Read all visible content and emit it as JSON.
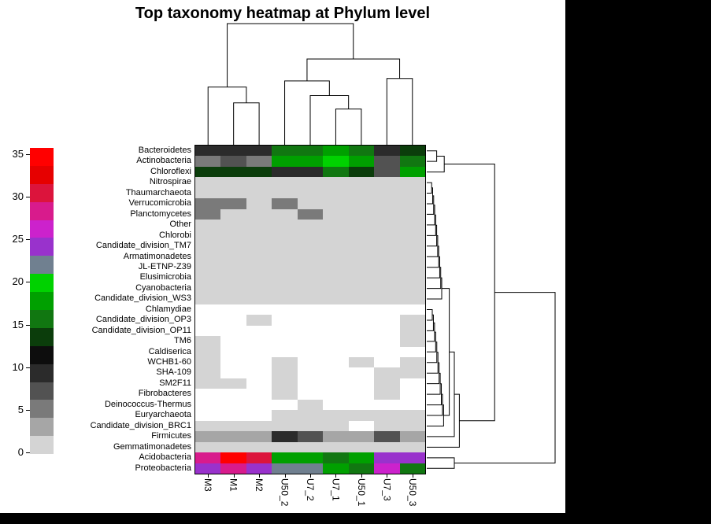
{
  "title": "Top taxonomy heatmap at Phylum level",
  "colors": {
    "outer_background": "#000000",
    "figure_background": "#ffffff",
    "line": "#000000"
  },
  "chart_data": {
    "type": "heatmap",
    "title": "Top taxonomy heatmap at Phylum level",
    "legend_position": "left",
    "columns": [
      "M3",
      "M1",
      "M2",
      "U50_2",
      "U7_2",
      "U7_1",
      "U50_1",
      "U7_3",
      "U50_3"
    ],
    "rows": [
      "Bacteroidetes",
      "Actinobacteria",
      "Chloroflexi",
      "Nitrospirae",
      "Thaumarchaeota",
      "Verrucomicrobia",
      "Planctomycetes",
      "Other",
      "Chlorobi",
      "Candidate_division_TM7",
      "Armatimonadetes",
      "JL-ETNP-Z39",
      "Elusimicrobia",
      "Cyanobacteria",
      "Candidate_division_WS3",
      "Chlamydiae",
      "Candidate_division_OP3",
      "Candidate_division_OP11",
      "TM6",
      "Caldiserica",
      "WCHB1-60",
      "SHA-109",
      "SM2F11",
      "Fibrobacteres",
      "Deinococcus-Thermus",
      "Euryarchaeota",
      "Candidate_division_BRC1",
      "Firmicutes",
      "Gemmatimonadetes",
      "Acidobacteria",
      "Proteobacteria"
    ],
    "values": [
      [
        10,
        10,
        10,
        17,
        16,
        18,
        16,
        10,
        14
      ],
      [
        6,
        9,
        6,
        18,
        18,
        20,
        19,
        9,
        16
      ],
      [
        14,
        14,
        14,
        10,
        10,
        16,
        15,
        9,
        18
      ],
      [
        2,
        2,
        2,
        2,
        2,
        2,
        2,
        2,
        2
      ],
      [
        3,
        2,
        2,
        3,
        2,
        2,
        2,
        2,
        2
      ],
      [
        6,
        6,
        2,
        6,
        2,
        2,
        2,
        2,
        2
      ],
      [
        6,
        3,
        2,
        2,
        6,
        2,
        2,
        2,
        2
      ],
      [
        2,
        2,
        2,
        2,
        2,
        2,
        2,
        2,
        2
      ],
      [
        2,
        2,
        2,
        2,
        2,
        2,
        2,
        2,
        2
      ],
      [
        2,
        2,
        2,
        2,
        2,
        2,
        2,
        2,
        2
      ],
      [
        2,
        2,
        2,
        2,
        2,
        2,
        2,
        2,
        2
      ],
      [
        2,
        2,
        2,
        2,
        2,
        2,
        2,
        2,
        2
      ],
      [
        2,
        2,
        2,
        2,
        2,
        2,
        2,
        2,
        2
      ],
      [
        2,
        2,
        2,
        2,
        2,
        2,
        2,
        2,
        2
      ],
      [
        2,
        2,
        2,
        2,
        2,
        2,
        2,
        2,
        2
      ],
      [
        0,
        0,
        0,
        0,
        0,
        0,
        0,
        0,
        0
      ],
      [
        0,
        0,
        2,
        0,
        0,
        0,
        0,
        0,
        2
      ],
      [
        0,
        0,
        0,
        0,
        0,
        0,
        0,
        0,
        2
      ],
      [
        2,
        0,
        0,
        0,
        0,
        0,
        0,
        0,
        2
      ],
      [
        2,
        0,
        0,
        0,
        0,
        0,
        0,
        0,
        0
      ],
      [
        2,
        0,
        0,
        2,
        0,
        0,
        2,
        0,
        2
      ],
      [
        2,
        0,
        0,
        2,
        0,
        0,
        0,
        2,
        2
      ],
      [
        2,
        2,
        0,
        2,
        0,
        0,
        0,
        2,
        0
      ],
      [
        0,
        0,
        0,
        2,
        0,
        0,
        0,
        2,
        0
      ],
      [
        0,
        0,
        0,
        0,
        2,
        0,
        0,
        0,
        0
      ],
      [
        0,
        0,
        0,
        2,
        2,
        2,
        2,
        2,
        2
      ],
      [
        2,
        2,
        2,
        2,
        2,
        2,
        0,
        2,
        2
      ],
      [
        4,
        4,
        4,
        10,
        8,
        4,
        4,
        8,
        5
      ],
      [
        2,
        2,
        2,
        3,
        3,
        3,
        3,
        2,
        3
      ],
      [
        29,
        34,
        31,
        19,
        18,
        17,
        18,
        25,
        25
      ],
      [
        25,
        28,
        25,
        22,
        22,
        18,
        17,
        27,
        16
      ]
    ],
    "scale": {
      "min": 0,
      "max": 35,
      "ticks": [
        0,
        5,
        10,
        15,
        20,
        25,
        30,
        35
      ]
    },
    "palette": [
      "#ffffff",
      "#d4d4d4",
      "#a6a6a6",
      "#7a7a7a",
      "#525252",
      "#2b2b2b",
      "#0d0d0d",
      "#0b3d0b",
      "#117711",
      "#00a000",
      "#00d200",
      "#708090",
      "#9932cc",
      "#cc22cc",
      "#d81b8c",
      "#dc143c",
      "#e60000",
      "#ff0000"
    ],
    "col_dendrogram": {
      "merges": [
        [
          "L1",
          "L2",
          35
        ],
        [
          "L0",
          "N0",
          48
        ],
        [
          "L5",
          "L6",
          30
        ],
        [
          "L4",
          "N2",
          41
        ],
        [
          "L3",
          "N3",
          53
        ],
        [
          "L7",
          "L8",
          55
        ],
        [
          "N4",
          "N5",
          71
        ],
        [
          "N1",
          "N6",
          100
        ]
      ]
    },
    "row_dendrogram": {
      "merges": [
        [
          "L0",
          "L1",
          6
        ],
        [
          "N0",
          "L2",
          12
        ],
        [
          "L3",
          "L4",
          2
        ],
        [
          "N2",
          "L5",
          2.8
        ],
        [
          "N3",
          "L6",
          3.6
        ],
        [
          "N4",
          "L7",
          4.4
        ],
        [
          "N5",
          "L8",
          5.2
        ],
        [
          "N6",
          "L9",
          6
        ],
        [
          "N7",
          "L10",
          6.8
        ],
        [
          "N8",
          "L11",
          7.6
        ],
        [
          "N9",
          "L12",
          8.4
        ],
        [
          "N10",
          "L13",
          9.2
        ],
        [
          "N11",
          "L14",
          10
        ],
        [
          "L15",
          "L16",
          2.5
        ],
        [
          "N13",
          "L17",
          3.4
        ],
        [
          "N14",
          "L18",
          4.3
        ],
        [
          "N15",
          "L19",
          5.2
        ],
        [
          "N16",
          "L20",
          6.1
        ],
        [
          "N17",
          "L21",
          7
        ],
        [
          "N18",
          "L22",
          7.9
        ],
        [
          "N19",
          "L23",
          8.8
        ],
        [
          "N20",
          "L24",
          9.7
        ],
        [
          "N21",
          "L25",
          10.6
        ],
        [
          "N22",
          "L26",
          11.5
        ],
        [
          "N12",
          "N23",
          16
        ],
        [
          "N24",
          "L27",
          20
        ],
        [
          "N25",
          "L28",
          24
        ],
        [
          "N1",
          "N26",
          52
        ],
        [
          "L29",
          "L30",
          20
        ],
        [
          "N27",
          "N28",
          100
        ]
      ]
    }
  }
}
